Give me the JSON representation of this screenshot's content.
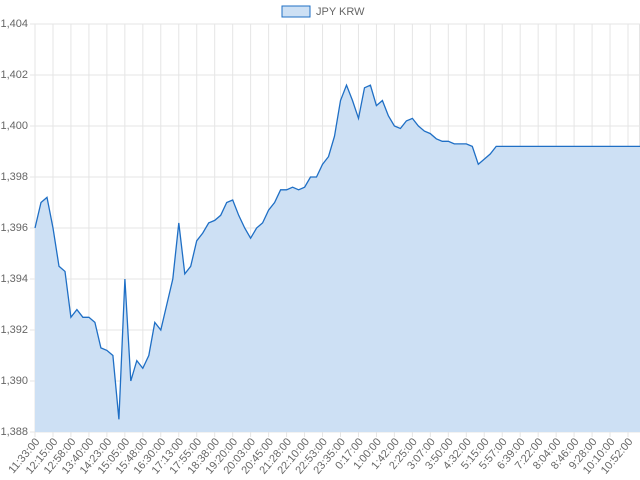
{
  "chart_data": {
    "type": "area",
    "legend": "JPY KRW",
    "legend_position": "top",
    "series": [
      {
        "name": "JPY KRW",
        "color": "#1f6fc5",
        "fill": "#cde0f4",
        "values": [
          1396,
          1397,
          1397.2,
          1396,
          1394.5,
          1394.3,
          1392.5,
          1392.8,
          1392.5,
          1392.5,
          1392.3,
          1391.3,
          1391.2,
          1391,
          1388.5,
          1394,
          1390,
          1390.8,
          1390.5,
          1391,
          1392.3,
          1392,
          1393,
          1394,
          1396.2,
          1394.2,
          1394.5,
          1395.5,
          1395.8,
          1396.2,
          1396.3,
          1396.5,
          1397,
          1397.1,
          1396.5,
          1396,
          1395.6,
          1396,
          1396.2,
          1396.7,
          1397,
          1397.5,
          1397.5,
          1397.6,
          1397.5,
          1397.6,
          1398,
          1398,
          1398.5,
          1398.8,
          1399.6,
          1401,
          1401.6,
          1401,
          1400.3,
          1401.5,
          1401.6,
          1400.8,
          1401,
          1400.4,
          1400,
          1399.9,
          1400.2,
          1400.3,
          1400,
          1399.8,
          1399.7,
          1399.5,
          1399.4,
          1399.4,
          1399.3,
          1399.3,
          1399.3,
          1399.2,
          1398.5,
          1398.7,
          1398.9,
          1399.2,
          1399.2,
          1399.2,
          1399.2,
          1399.2,
          1399.2,
          1399.2,
          1399.2,
          1399.2,
          1399.2,
          1399.2,
          1399.2,
          1399.2,
          1399.2,
          1399.2,
          1399.2,
          1399.2,
          1399.2,
          1399.2,
          1399.2,
          1399.2,
          1399.2,
          1399.2,
          1399.2,
          1399.2
        ]
      }
    ],
    "categories": [
      "11:33:00",
      null,
      null,
      "12:15:00",
      null,
      null,
      "12:58:00",
      null,
      null,
      "13:40:00",
      null,
      null,
      "14:23:00",
      null,
      null,
      "15:05:00",
      null,
      null,
      "15:48:00",
      null,
      null,
      "16:30:00",
      null,
      null,
      "17:13:00",
      null,
      null,
      "17:55:00",
      null,
      null,
      "18:38:00",
      null,
      null,
      "19:20:00",
      null,
      null,
      "20:03:00",
      null,
      null,
      "20:45:00",
      null,
      null,
      "21:28:00",
      null,
      null,
      "22:10:00",
      null,
      null,
      "22:53:00",
      null,
      null,
      "23:35:00",
      null,
      null,
      "0:17:00",
      null,
      null,
      "1:00:00",
      null,
      null,
      "1:42:00",
      null,
      null,
      "2:25:00",
      null,
      null,
      "3:07:00",
      null,
      null,
      "3:50:00",
      null,
      null,
      "4:32:00",
      null,
      null,
      "5:15:00",
      null,
      null,
      "5:57:00",
      null,
      null,
      "6:39:00",
      null,
      null,
      "7:22:00",
      null,
      null,
      "8:04:00",
      null,
      null,
      "8:46:00",
      null,
      null,
      "9:28:00",
      null,
      null,
      "10:10:00",
      null,
      null,
      "10:52:00",
      null,
      null
    ],
    "ylim": [
      1388,
      1404
    ],
    "yticks": [
      {
        "value": 1388,
        "label": "1,388"
      },
      {
        "value": 1390,
        "label": "1,390"
      },
      {
        "value": 1392,
        "label": "1,392"
      },
      {
        "value": 1394,
        "label": "1,394"
      },
      {
        "value": 1396,
        "label": "1,396"
      },
      {
        "value": 1398,
        "label": "1,398"
      },
      {
        "value": 1400,
        "label": "1,400"
      },
      {
        "value": 1402,
        "label": "1,402"
      },
      {
        "value": 1404,
        "label": "1,404"
      }
    ],
    "grid": true
  }
}
